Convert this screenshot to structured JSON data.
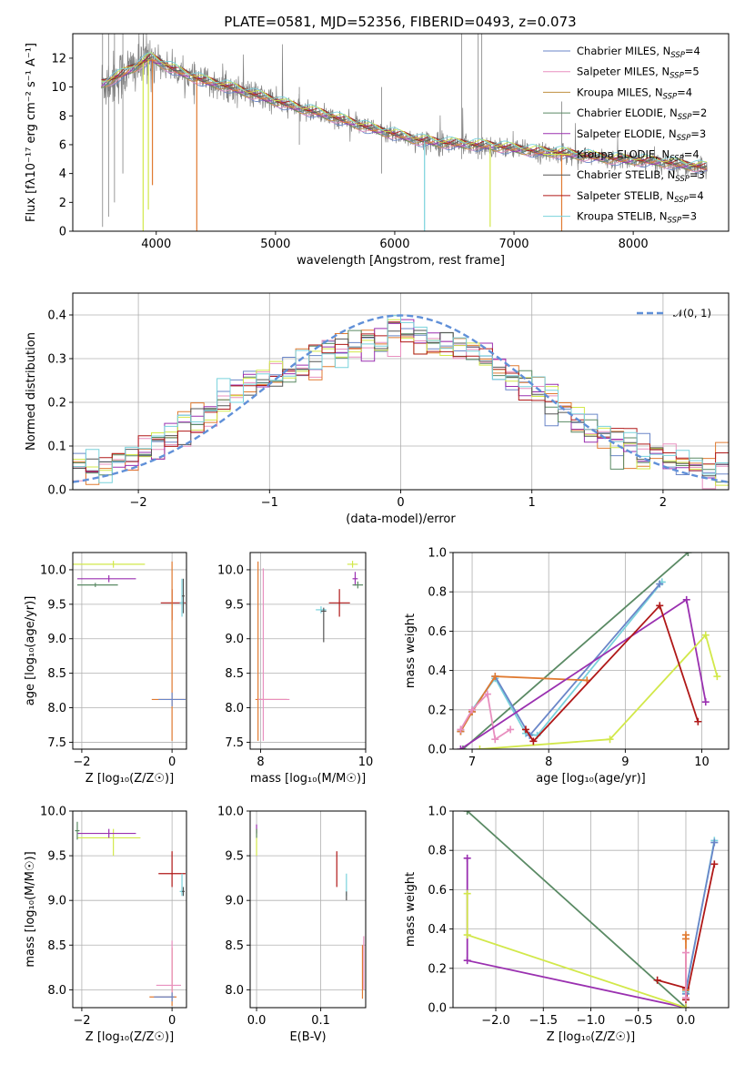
{
  "figure_title": "PLATE=0581, MJD=52356, FIBERID=0493, z=0.073",
  "colors": {
    "chabrier_miles": "#6a86c8",
    "salpeter_miles": "#e88fbf",
    "kroupa_miles": "#c09040",
    "chabrier_elodie": "#5a8a64",
    "salpeter_elodie": "#9a30b0",
    "kroupa_elodie": "#d2e84a",
    "chabrier_stelib": "#555555",
    "salpeter_stelib": "#b01818",
    "kroupa_stelib": "#78d2dc",
    "observed": "#808080",
    "model_orange": "#e07a30",
    "normal": "#6090d8"
  },
  "chart_data": [
    {
      "id": "spectrum",
      "type": "line",
      "xlabel": "wavelength [Angstrom, rest frame]",
      "ylabel": "Flux [fλ10⁻¹⁷ erg cm⁻² s⁻¹ A⁻¹]",
      "xlim": [
        3300,
        8800
      ],
      "ylim": [
        0,
        13.7
      ],
      "xticks": [
        4000,
        5000,
        6000,
        7000,
        8000
      ],
      "yticks": [
        0,
        2,
        4,
        6,
        8,
        10,
        12
      ],
      "grid": false,
      "legend_position": "upper-right",
      "legend": [
        {
          "label": "Chabrier MILES, N",
          "sub": "SSP",
          "suffix": "=4",
          "color_key": "chabrier_miles"
        },
        {
          "label": "Salpeter MILES, N",
          "sub": "SSP",
          "suffix": "=5",
          "color_key": "salpeter_miles"
        },
        {
          "label": "Kroupa MILES, N",
          "sub": "SSP",
          "suffix": "=4",
          "color_key": "kroupa_miles"
        },
        {
          "label": "Chabrier ELODIE, N",
          "sub": "SSP",
          "suffix": "=2",
          "color_key": "chabrier_elodie"
        },
        {
          "label": "Salpeter ELODIE, N",
          "sub": "SSP",
          "suffix": "=3",
          "color_key": "salpeter_elodie"
        },
        {
          "label": "Kroupa ELODIE, N",
          "sub": "SSP",
          "suffix": "=4",
          "color_key": "kroupa_elodie"
        },
        {
          "label": "Chabrier STELIB, N",
          "sub": "SSP",
          "suffix": "=3",
          "color_key": "chabrier_stelib"
        },
        {
          "label": "Salpeter STELIB, N",
          "sub": "SSP",
          "suffix": "=4",
          "color_key": "salpeter_stelib"
        },
        {
          "label": "Kroupa STELIB, N",
          "sub": "SSP",
          "suffix": "=3",
          "color_key": "kroupa_stelib"
        }
      ],
      "continuum": [
        [
          3550,
          10.2
        ],
        [
          3700,
          10.8
        ],
        [
          3850,
          11.5
        ],
        [
          3950,
          12.0
        ],
        [
          4050,
          11.6
        ],
        [
          4200,
          11.0
        ],
        [
          4400,
          10.4
        ],
        [
          4600,
          10.0
        ],
        [
          4800,
          9.5
        ],
        [
          5000,
          9.0
        ],
        [
          5200,
          8.5
        ],
        [
          5400,
          8.1
        ],
        [
          5600,
          7.6
        ],
        [
          5800,
          7.1
        ],
        [
          6000,
          6.7
        ],
        [
          6200,
          6.3
        ],
        [
          6400,
          6.1
        ],
        [
          6600,
          6.0
        ],
        [
          6800,
          5.9
        ],
        [
          7000,
          5.7
        ],
        [
          7200,
          5.5
        ],
        [
          7400,
          5.4
        ],
        [
          7600,
          5.2
        ],
        [
          7800,
          5.0
        ],
        [
          8000,
          4.9
        ],
        [
          8200,
          4.8
        ],
        [
          8400,
          4.6
        ],
        [
          8600,
          4.4
        ]
      ],
      "model_dips": [
        [
          3934,
          1.5
        ],
        [
          3968,
          3.2
        ],
        [
          4340,
          0.0
        ],
        [
          3890,
          0.0
        ],
        [
          6250,
          0.0
        ],
        [
          6800,
          0.3
        ],
        [
          7400,
          0.0
        ]
      ]
    },
    {
      "id": "residuals",
      "type": "step",
      "xlabel": "(data-model)/error",
      "ylabel": "Normed distribution",
      "xlim": [
        -2.5,
        2.5
      ],
      "ylim": [
        0,
        0.45
      ],
      "xticks": [
        -2,
        -1,
        0,
        1,
        2
      ],
      "yticks": [
        0.0,
        0.1,
        0.2,
        0.3,
        0.4
      ],
      "grid": true,
      "legend": [
        {
          "label": "𝒩(0, 1)",
          "color_key": "normal",
          "dashed": true
        }
      ],
      "bin_width": 0.1,
      "bin_start": -2.5,
      "envelope": [
        0.05,
        0.055,
        0.06,
        0.065,
        0.075,
        0.09,
        0.1,
        0.12,
        0.14,
        0.16,
        0.18,
        0.2,
        0.22,
        0.235,
        0.25,
        0.26,
        0.27,
        0.285,
        0.3,
        0.31,
        0.32,
        0.33,
        0.34,
        0.345,
        0.35,
        0.35,
        0.345,
        0.34,
        0.33,
        0.32,
        0.31,
        0.3,
        0.28,
        0.26,
        0.24,
        0.22,
        0.2,
        0.18,
        0.16,
        0.14,
        0.125,
        0.11,
        0.095,
        0.085,
        0.075,
        0.065,
        0.058,
        0.05,
        0.045,
        0.04
      ]
    },
    {
      "id": "age_vs_Z",
      "type": "errorbar",
      "xlabel": "Z [log₁₀(Z/Z☉)]",
      "ylabel": "age  [log₁₀(age/yr)]",
      "xlim": [
        -2.2,
        0.32
      ],
      "ylim": [
        7.4,
        10.25
      ],
      "xticks": [
        -2,
        0
      ],
      "yticks": [
        7.5,
        8.0,
        8.5,
        9.0,
        9.5,
        10.0
      ],
      "grid": true,
      "points": [
        {
          "c": "kroupa_elodie",
          "x": -1.3,
          "y": 10.08,
          "xerr": [
            0.9,
            0.7
          ],
          "yerr": [
            0.05,
            0.05
          ]
        },
        {
          "c": "salpeter_elodie",
          "x": -1.4,
          "y": 9.87,
          "xerr": [
            0.7,
            0.6
          ],
          "yerr": [
            0.05,
            0.05
          ]
        },
        {
          "c": "chabrier_elodie",
          "x": -1.7,
          "y": 9.78,
          "xerr": [
            0.4,
            0.5
          ],
          "yerr": [
            0.03,
            0.03
          ]
        },
        {
          "c": "salpeter_stelib",
          "x": 0.0,
          "y": 9.52,
          "xerr": [
            0.25,
            0.3
          ],
          "yerr": [
            0.25,
            0.2
          ]
        },
        {
          "c": "kroupa_stelib",
          "x": 0.22,
          "y": 9.52,
          "xerr": [
            0.05,
            0.05
          ],
          "yerr": [
            0.2,
            0.35
          ]
        },
        {
          "c": "chabrier_stelib",
          "x": 0.25,
          "y": 9.62,
          "xerr": [
            0.03,
            0.03
          ],
          "yerr": [
            0.25,
            0.25
          ]
        },
        {
          "c": "model_orange",
          "x": 0.0,
          "y": 8.12,
          "xerr": [
            0.45,
            0.3
          ],
          "yerr": [
            0.6,
            2.0
          ]
        },
        {
          "c": "chabrier_miles",
          "x": 0.0,
          "y": 8.12,
          "xerr": [
            0.3,
            0.3
          ],
          "yerr": [
            0.1,
            0.1
          ]
        }
      ]
    },
    {
      "id": "age_vs_mass",
      "type": "errorbar",
      "xlabel": "mass [log₁₀(M/M☉)]",
      "ylabel": "",
      "xlim": [
        7.8,
        10.0
      ],
      "ylim": [
        7.4,
        10.25
      ],
      "xticks": [
        8,
        10
      ],
      "yticks": [
        7.5,
        8.0,
        8.5,
        9.0,
        9.5,
        10.0
      ],
      "grid": true,
      "points": [
        {
          "c": "model_orange",
          "x": 7.95,
          "y": 8.12,
          "xerr": [
            0.05,
            0.55
          ],
          "yerr": [
            0.6,
            2.0
          ]
        },
        {
          "c": "salpeter_miles",
          "x": 8.05,
          "y": 8.12,
          "xerr": [
            0.1,
            0.5
          ],
          "yerr": [
            0.6,
            1.9
          ]
        },
        {
          "c": "kroupa_stelib",
          "x": 9.15,
          "y": 9.42,
          "xerr": [
            0.1,
            0.1
          ],
          "yerr": [
            0.05,
            0.05
          ]
        },
        {
          "c": "chabrier_stelib",
          "x": 9.2,
          "y": 9.4,
          "xerr": [
            0.05,
            0.05
          ],
          "yerr": [
            0.45,
            0.05
          ]
        },
        {
          "c": "salpeter_stelib",
          "x": 9.5,
          "y": 9.52,
          "xerr": [
            0.2,
            0.2
          ],
          "yerr": [
            0.2,
            0.2
          ]
        },
        {
          "c": "kroupa_elodie",
          "x": 9.75,
          "y": 10.08,
          "xerr": [
            0.1,
            0.1
          ],
          "yerr": [
            0.05,
            0.05
          ]
        },
        {
          "c": "salpeter_elodie",
          "x": 9.8,
          "y": 9.87,
          "xerr": [
            0.05,
            0.05
          ],
          "yerr": [
            0.1,
            0.1
          ]
        },
        {
          "c": "chabrier_elodie",
          "x": 9.85,
          "y": 9.78,
          "xerr": [
            0.1,
            0.1
          ],
          "yerr": [
            0.05,
            0.05
          ]
        }
      ]
    },
    {
      "id": "weight_vs_age",
      "type": "line",
      "xlabel": "age  [log₁₀(age/yr)]",
      "ylabel": "mass weight",
      "xlim": [
        6.75,
        10.35
      ],
      "ylim": [
        0,
        1.0
      ],
      "xticks": [
        7,
        8,
        9,
        10
      ],
      "yticks": [
        0.0,
        0.2,
        0.4,
        0.6,
        0.8,
        1.0
      ],
      "grid": true,
      "series": [
        {
          "c": "chabrier_elodie",
          "x": [
            6.88,
            9.82
          ],
          "y": [
            0.0,
            1.0
          ]
        },
        {
          "c": "kroupa_stelib",
          "x": [
            6.85,
            7.0,
            7.3,
            7.7,
            7.85,
            9.48
          ],
          "y": [
            0.09,
            0.2,
            0.36,
            0.08,
            0.07,
            0.85
          ]
        },
        {
          "c": "chabrier_miles",
          "x": [
            6.85,
            7.0,
            7.3,
            7.75,
            9.45
          ],
          "y": [
            0.09,
            0.19,
            0.37,
            0.07,
            0.84
          ]
        },
        {
          "c": "model_orange",
          "x": [
            6.85,
            7.0,
            7.3,
            8.5
          ],
          "y": [
            0.09,
            0.19,
            0.37,
            0.35
          ]
        },
        {
          "c": "salpeter_miles",
          "x": [
            6.85,
            7.0,
            7.2,
            7.3,
            7.5
          ],
          "y": [
            0.1,
            0.2,
            0.28,
            0.05,
            0.1
          ]
        },
        {
          "c": "salpeter_elodie",
          "x": [
            6.85,
            9.8,
            10.05
          ],
          "y": [
            0.0,
            0.76,
            0.24
          ]
        },
        {
          "c": "kroupa_elodie",
          "x": [
            7.1,
            8.8,
            10.05,
            10.2
          ],
          "y": [
            0.0,
            0.05,
            0.58,
            0.37
          ]
        },
        {
          "c": "salpeter_stelib",
          "x": [
            7.7,
            7.8,
            9.45,
            9.95
          ],
          "y": [
            0.1,
            0.04,
            0.73,
            0.14
          ]
        }
      ]
    },
    {
      "id": "mass_vs_Z",
      "type": "errorbar",
      "xlabel": "Z [log₁₀(Z/Z☉)]",
      "ylabel": "mass [log₁₀(M/M☉)]",
      "xlim": [
        -2.2,
        0.32
      ],
      "ylim": [
        7.8,
        10.0
      ],
      "xticks": [
        -2,
        0
      ],
      "yticks": [
        8.0,
        8.5,
        9.0,
        9.5,
        10.0
      ],
      "grid": true,
      "points": [
        {
          "c": "kroupa_elodie",
          "x": -1.3,
          "y": 9.7,
          "xerr": [
            0.8,
            0.6
          ],
          "yerr": [
            0.2,
            0.1
          ]
        },
        {
          "c": "salpeter_elodie",
          "x": -1.4,
          "y": 9.75,
          "xerr": [
            0.7,
            0.6
          ],
          "yerr": [
            0.05,
            0.05
          ]
        },
        {
          "c": "chabrier_elodie",
          "x": -2.1,
          "y": 9.78,
          "xerr": [
            0.05,
            0.05
          ],
          "yerr": [
            0.1,
            0.1
          ]
        },
        {
          "c": "salpeter_stelib",
          "x": 0.0,
          "y": 9.3,
          "xerr": [
            0.3,
            0.3
          ],
          "yerr": [
            0.15,
            0.25
          ]
        },
        {
          "c": "kroupa_stelib",
          "x": 0.22,
          "y": 9.1,
          "xerr": [
            0.05,
            0.05
          ],
          "yerr": [
            0.05,
            0.2
          ]
        },
        {
          "c": "chabrier_stelib",
          "x": 0.25,
          "y": 9.1,
          "xerr": [
            0.03,
            0.03
          ],
          "yerr": [
            0.05,
            0.05
          ]
        },
        {
          "c": "model_orange",
          "x": 0.0,
          "y": 7.92,
          "xerr": [
            0.5,
            0.1
          ],
          "yerr": [
            0.1,
            0.55
          ]
        },
        {
          "c": "salpeter_miles",
          "x": 0.0,
          "y": 8.05,
          "xerr": [
            0.35,
            0.2
          ],
          "yerr": [
            0.1,
            0.5
          ]
        },
        {
          "c": "chabrier_miles",
          "x": 0.0,
          "y": 7.92,
          "xerr": [
            0.4,
            0.05
          ],
          "yerr": [
            0.05,
            0.05
          ]
        }
      ]
    },
    {
      "id": "mass_vs_EBV",
      "type": "errorbar",
      "xlabel": "E(B-V)",
      "ylabel": "",
      "xlim": [
        -0.01,
        0.17
      ],
      "ylim": [
        7.8,
        10.0
      ],
      "xticks": [
        0.0,
        0.1
      ],
      "yticks": [
        8.0,
        8.5,
        9.0,
        9.5,
        10.0
      ],
      "grid": true,
      "points": [
        {
          "c": "kroupa_elodie",
          "x": 0.0,
          "y": 9.7,
          "xerr": [
            0,
            0
          ],
          "yerr": [
            0.2,
            0.1
          ]
        },
        {
          "c": "salpeter_elodie",
          "x": 0.0,
          "y": 9.8,
          "xerr": [
            0,
            0
          ],
          "yerr": [
            0.05,
            0.05
          ]
        },
        {
          "c": "chabrier_elodie",
          "x": 0.0,
          "y": 9.75,
          "xerr": [
            0,
            0
          ],
          "yerr": [
            0.05,
            0.05
          ]
        },
        {
          "c": "salpeter_stelib",
          "x": 0.125,
          "y": 9.3,
          "xerr": [
            0,
            0
          ],
          "yerr": [
            0.15,
            0.25
          ]
        },
        {
          "c": "kroupa_stelib",
          "x": 0.14,
          "y": 9.1,
          "xerr": [
            0,
            0
          ],
          "yerr": [
            0.05,
            0.2
          ]
        },
        {
          "c": "chabrier_stelib",
          "x": 0.14,
          "y": 9.05,
          "xerr": [
            0,
            0
          ],
          "yerr": [
            0.05,
            0.05
          ]
        },
        {
          "c": "model_orange",
          "x": 0.165,
          "y": 8.2,
          "xerr": [
            0,
            0
          ],
          "yerr": [
            0.3,
            0.3
          ]
        },
        {
          "c": "salpeter_miles",
          "x": 0.167,
          "y": 8.3,
          "xerr": [
            0,
            0
          ],
          "yerr": [
            0.3,
            0.3
          ]
        }
      ]
    },
    {
      "id": "weight_vs_Z",
      "type": "line",
      "xlabel": "Z [log₁₀(Z/Z☉)]",
      "ylabel": "mass weight",
      "xlim": [
        -2.45,
        0.45
      ],
      "ylim": [
        0,
        1.0
      ],
      "xticks": [
        -2.0,
        -1.5,
        -1.0,
        -0.5,
        0.0
      ],
      "yticks": [
        0.0,
        0.2,
        0.4,
        0.6,
        0.8,
        1.0
      ],
      "grid": true,
      "series": [
        {
          "c": "chabrier_elodie",
          "x": [
            -2.3,
            0.0
          ],
          "y": [
            1.0,
            0.0
          ]
        },
        {
          "c": "salpeter_elodie",
          "x": [
            -2.3,
            -2.3,
            0.0
          ],
          "y": [
            0.76,
            0.24,
            0.0
          ]
        },
        {
          "c": "kroupa_elodie",
          "x": [
            -2.3,
            -2.3,
            0.0
          ],
          "y": [
            0.58,
            0.37,
            0.0
          ]
        },
        {
          "c": "salpeter_stelib",
          "x": [
            -0.3,
            0.0,
            0.0,
            0.3
          ],
          "y": [
            0.14,
            0.1,
            0.04,
            0.73
          ]
        },
        {
          "c": "kroupa_stelib",
          "x": [
            0.0,
            0.0,
            0.3
          ],
          "y": [
            0.07,
            0.08,
            0.85
          ]
        },
        {
          "c": "chabrier_miles",
          "x": [
            0.0,
            0.0,
            0.3
          ],
          "y": [
            0.07,
            0.09,
            0.84
          ]
        },
        {
          "c": "model_orange",
          "x": [
            0.0,
            0.0,
            0.0
          ],
          "y": [
            0.09,
            0.37,
            0.35
          ]
        },
        {
          "c": "salpeter_miles",
          "x": [
            0.0,
            0.0
          ],
          "y": [
            0.05,
            0.28
          ]
        }
      ]
    }
  ]
}
